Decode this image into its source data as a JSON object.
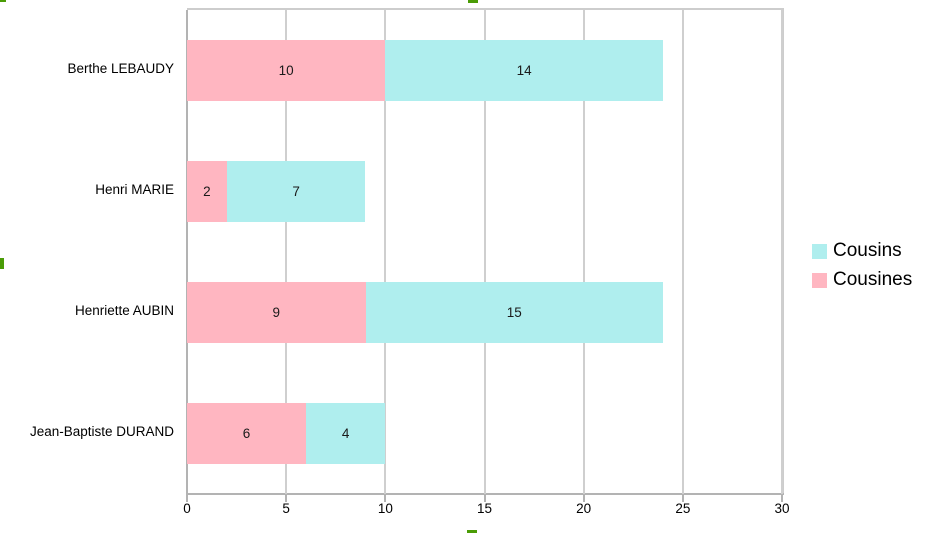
{
  "chart_data": {
    "type": "bar",
    "orientation": "horizontal",
    "stacked": true,
    "categories": [
      "Berthe LEBAUDY",
      "Henri MARIE",
      "Henriette AUBIN",
      "Jean-Baptiste DURAND"
    ],
    "series": [
      {
        "name": "Cousines",
        "color": "#FFB6C1",
        "values": [
          10,
          2,
          9,
          6
        ]
      },
      {
        "name": "Cousins",
        "color": "#AFEEEE",
        "values": [
          14,
          7,
          15,
          4
        ]
      }
    ],
    "value_labels": [
      [
        "10",
        "14"
      ],
      [
        "2",
        "7"
      ],
      [
        "9",
        "15"
      ],
      [
        "6",
        "4"
      ]
    ],
    "xlim": [
      0,
      30
    ],
    "xticks": [
      "0",
      "5",
      "10",
      "15",
      "20",
      "25",
      "30"
    ],
    "grid": true,
    "legend_position": "right"
  },
  "legend": {
    "items": [
      {
        "label": "Cousins",
        "color": "#AFEEEE"
      },
      {
        "label": "Cousines",
        "color": "#FFB6C1"
      }
    ]
  },
  "colors": {
    "grid": "#cfcfcf",
    "axis": "#b3b3b3",
    "clipped_title_fragment": "#4a9c06"
  }
}
